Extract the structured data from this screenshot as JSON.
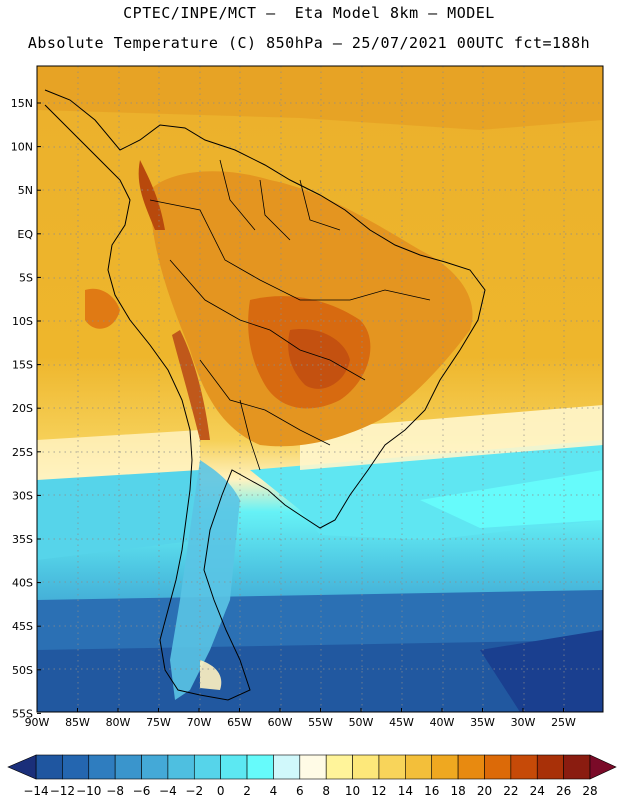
{
  "header": {
    "line1": "CPTEC/INPE/MCT –  Eta Model 8km – MODEL",
    "line2": "Absolute Temperature (C) 850hPa – 25/07/2021 00UTC fct=188h"
  },
  "map": {
    "lat_labels": [
      "15N",
      "10N",
      "5N",
      "EQ",
      "5S",
      "10S",
      "15S",
      "20S",
      "25S",
      "30S",
      "35S",
      "40S",
      "45S",
      "50S",
      "55S"
    ],
    "lon_labels": [
      "90W",
      "85W",
      "80W",
      "75W",
      "70W",
      "65W",
      "60W",
      "55W",
      "50W",
      "45W",
      "40W",
      "35W",
      "30W",
      "25W"
    ]
  },
  "colorbar": {
    "ticks": [
      "-14",
      "-12",
      "-10",
      "-8",
      "-6",
      "-4",
      "-2",
      "0",
      "2",
      "4",
      "6",
      "8",
      "10",
      "12",
      "14",
      "16",
      "18",
      "20",
      "22",
      "24",
      "26",
      "28"
    ],
    "colors": [
      "#1a3f8f",
      "#1f56a0",
      "#2466b0",
      "#2f7dbf",
      "#3a95cc",
      "#44a9d7",
      "#4ebfe0",
      "#56d4ea",
      "#5ce8f2",
      "#66fbfb",
      "#d0f8fb",
      "#fffbe6",
      "#fff49a",
      "#fde87a",
      "#f8d45a",
      "#f3bf3a",
      "#efa820",
      "#e88a10",
      "#dc6a08",
      "#c64a08",
      "#a83008",
      "#8a1c10",
      "#6e1018"
    ],
    "min_color": "#1a2f7a",
    "max_color": "#7a0a28"
  }
}
